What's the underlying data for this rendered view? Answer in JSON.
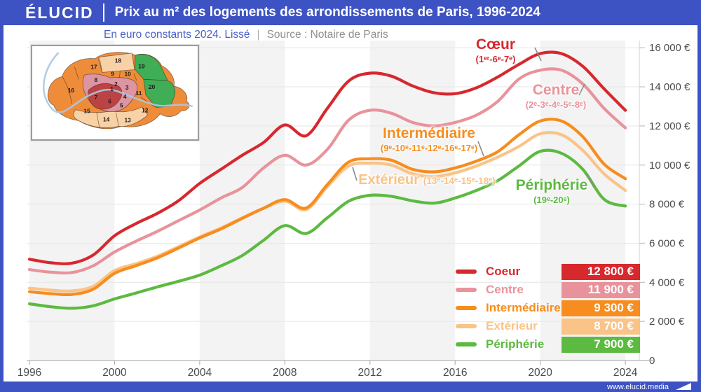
{
  "header": {
    "logo": "ÉLUCID",
    "title": "Prix au m² des logements des arrondissements de Paris, 1996-2024"
  },
  "subtitle": {
    "note": "En euro constants 2024. Lissé",
    "separator": "|",
    "source": "Source : Notaire de Paris"
  },
  "footer": {
    "url": "www.elucid.media"
  },
  "colors": {
    "brand_blue": "#3e53c3",
    "subtitle_text": "#4a5fc9",
    "muted_text": "#8f8f8f",
    "axis_text": "#4a4a4a",
    "grid": "#e6e6e6",
    "axis_line": "#b3b3b3",
    "band": "#f3f3f3",
    "plot_border": "#d8d8d8",
    "callout": "#8a8a8a"
  },
  "map": {
    "palette": {
      "coeur": "#bc4343",
      "centre": "#dd95a2",
      "intermediaire": "#ef8c3a",
      "exterieur": "#f8d2a6",
      "peripherie": "#3fae57",
      "river": "#aac6e6",
      "number": "#1d1d1d"
    },
    "arrondissements": [
      {
        "n": "1",
        "cat": "coeur"
      },
      {
        "n": "2",
        "cat": "centre"
      },
      {
        "n": "3",
        "cat": "centre"
      },
      {
        "n": "4",
        "cat": "centre"
      },
      {
        "n": "5",
        "cat": "centre"
      },
      {
        "n": "6",
        "cat": "coeur"
      },
      {
        "n": "7",
        "cat": "coeur"
      },
      {
        "n": "8",
        "cat": "centre"
      },
      {
        "n": "9",
        "cat": "intermediaire"
      },
      {
        "n": "10",
        "cat": "intermediaire"
      },
      {
        "n": "11",
        "cat": "intermediaire"
      },
      {
        "n": "12",
        "cat": "intermediaire"
      },
      {
        "n": "13",
        "cat": "exterieur"
      },
      {
        "n": "14",
        "cat": "exterieur"
      },
      {
        "n": "15",
        "cat": "exterieur"
      },
      {
        "n": "16",
        "cat": "intermediaire"
      },
      {
        "n": "17",
        "cat": "intermediaire"
      },
      {
        "n": "18",
        "cat": "exterieur"
      },
      {
        "n": "19",
        "cat": "peripherie"
      },
      {
        "n": "20",
        "cat": "peripherie"
      }
    ]
  },
  "chart_data": {
    "type": "line",
    "title": "Prix au m² des logements des arrondissements de Paris, 1996-2024",
    "unit": "€ / m² (euros constants 2024, lissé)",
    "ylim": [
      0,
      16000
    ],
    "x": [
      1996,
      1997,
      1998,
      1999,
      2000,
      2001,
      2002,
      2003,
      2004,
      2005,
      2006,
      2007,
      2008,
      2009,
      2010,
      2011,
      2012,
      2013,
      2014,
      2015,
      2016,
      2017,
      2018,
      2019,
      2020,
      2021,
      2022,
      2023,
      2024
    ],
    "x_ticks": [
      {
        "v": 1996,
        "label": "1996"
      },
      {
        "v": 2000,
        "label": "2000"
      },
      {
        "v": 2004,
        "label": "2004"
      },
      {
        "v": 2008,
        "label": "2008"
      },
      {
        "v": 2012,
        "label": "2012"
      },
      {
        "v": 2016,
        "label": "2016"
      },
      {
        "v": 2020,
        "label": "2020"
      },
      {
        "v": 2024,
        "label": "2024"
      }
    ],
    "y_ticks": [
      {
        "v": 0,
        "label": "0"
      },
      {
        "v": 2000,
        "label": "2 000 €"
      },
      {
        "v": 4000,
        "label": "4 000 €"
      },
      {
        "v": 6000,
        "label": "6 000 €"
      },
      {
        "v": 8000,
        "label": "8 000 €"
      },
      {
        "v": 10000,
        "label": "10 000 €"
      },
      {
        "v": 12000,
        "label": "12 000 €"
      },
      {
        "v": 14000,
        "label": "14 000 €"
      },
      {
        "v": 16000,
        "label": "16 000 €"
      }
    ],
    "series": [
      {
        "id": "coeur",
        "label": "Cœur",
        "sublabel": "(1ᵉʳ-6ᵉ-7ᵉ)",
        "legend_label": "Coeur",
        "end_value_label": "12 800 €",
        "color": "#d7282e",
        "values": [
          5180,
          5000,
          4980,
          5400,
          6380,
          7000,
          7520,
          8170,
          9060,
          9780,
          10500,
          11150,
          12050,
          11500,
          12900,
          14300,
          14700,
          14550,
          14050,
          13700,
          13650,
          13950,
          14500,
          15150,
          15700,
          15700,
          15050,
          13900,
          12800
        ]
      },
      {
        "id": "centre",
        "label": "Centre",
        "sublabel": "(2ᵉ-3ᵉ-4ᵉ-5ᵉ-8ᵉ)",
        "legend_label": "Centre",
        "end_value_label": "11 900 €",
        "color": "#e8939b",
        "values": [
          4650,
          4520,
          4500,
          4850,
          5550,
          6100,
          6600,
          7150,
          7700,
          8310,
          8850,
          9850,
          10500,
          10000,
          10800,
          12300,
          12800,
          12650,
          12180,
          12000,
          12180,
          12550,
          13250,
          14400,
          14850,
          14850,
          14150,
          12900,
          11900
        ]
      },
      {
        "id": "intermediaire",
        "label": "Intermédiaire",
        "sublabel": "(9ᵉ-10ᵉ-11ᵉ-12ᵉ-16ᵉ-17ᵉ)",
        "legend_label": "Intermédiaire",
        "end_value_label": "9 300 €",
        "color": "#f68d1e",
        "values": [
          3520,
          3420,
          3380,
          3650,
          4460,
          4850,
          5250,
          5750,
          6270,
          6730,
          7270,
          7790,
          8230,
          7800,
          9000,
          10150,
          10320,
          10250,
          9780,
          9650,
          9850,
          10200,
          10680,
          11550,
          12250,
          12250,
          11450,
          10050,
          9300
        ]
      },
      {
        "id": "exterieur",
        "label": "Extérieur",
        "sublabel": "(13ᵉ-14ᵉ-15ᵉ-18ᵉ)",
        "legend_label": "Extérieur",
        "end_value_label": "8 700 €",
        "color": "#fac387",
        "values": [
          3700,
          3600,
          3560,
          3800,
          4600,
          4950,
          5330,
          5820,
          6320,
          6780,
          7300,
          7790,
          8150,
          7720,
          8900,
          9950,
          10100,
          10000,
          9550,
          9400,
          9600,
          9950,
          10400,
          10950,
          11600,
          11550,
          10750,
          9550,
          8700
        ]
      },
      {
        "id": "peripherie",
        "label": "Périphérie",
        "sublabel": "(19ᵉ-20ᵉ)",
        "legend_label": "Périphérie",
        "end_value_label": "7 900 €",
        "color": "#5cba40",
        "values": [
          2900,
          2750,
          2670,
          2800,
          3150,
          3450,
          3760,
          4050,
          4370,
          4840,
          5370,
          6150,
          6900,
          6500,
          7300,
          8150,
          8450,
          8400,
          8170,
          8050,
          8310,
          8700,
          9200,
          9950,
          10700,
          10600,
          9780,
          8250,
          7900
        ]
      }
    ]
  }
}
